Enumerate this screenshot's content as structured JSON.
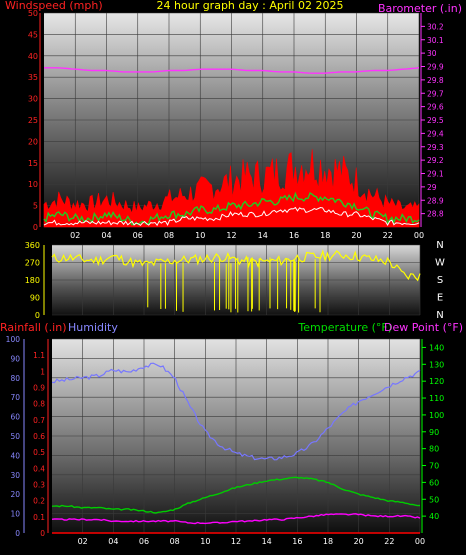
{
  "header": {
    "windspeed_label": "Windspeed (mph)",
    "title": "24 hour graph day : April 02 2025",
    "barometer_label": "Barometer (.in)"
  },
  "colors": {
    "wind_gust": "#ff0000",
    "wind_speed": "#22cc22",
    "wind_avg": "#ffffff",
    "barometer": "#ff33ff",
    "direction": "#ffff00",
    "rain": "#ff0000",
    "humidity": "#7777ff",
    "temperature": "#00cc00",
    "dewpoint": "#ff00ff",
    "left_axis": "#ff2222",
    "right_axis": "#ff33ff",
    "temp_axis": "#00ff00",
    "hum_axis": "#8888ff"
  },
  "chart_data": [
    {
      "type": "line",
      "name": "wind-barometer",
      "x": [
        0,
        1,
        2,
        3,
        4,
        5,
        6,
        7,
        8,
        9,
        10,
        11,
        12,
        13,
        14,
        15,
        16,
        17,
        18,
        19,
        20,
        21,
        22,
        23,
        24
      ],
      "xticks": [
        "02",
        "04",
        "06",
        "08",
        "10",
        "12",
        "14",
        "16",
        "18",
        "20",
        "22",
        "00"
      ],
      "ylim": [
        0,
        50
      ],
      "yticks": [
        0,
        5,
        10,
        15,
        20,
        25,
        30,
        35,
        40,
        45,
        50
      ],
      "y2lim": [
        28.7,
        30.3
      ],
      "y2ticks": [
        "28.8",
        "28.9",
        "29",
        "29.1",
        "29.2",
        "29.3",
        "29.4",
        "29.5",
        "29.6",
        "29.7",
        "29.8",
        "29.9",
        "30",
        "30.1",
        "30.2"
      ],
      "series": [
        {
          "role": "gust",
          "axis": "y",
          "values": [
            5,
            6,
            5,
            5,
            6,
            5,
            4,
            5,
            6,
            7,
            8,
            9,
            10,
            11,
            11,
            12,
            13,
            14,
            13,
            12,
            10,
            7,
            5,
            4,
            4
          ]
        },
        {
          "role": "speed",
          "axis": "y",
          "values": [
            2,
            3,
            2,
            2,
            3,
            2,
            1,
            2,
            3,
            3,
            4,
            4,
            5,
            5,
            6,
            6,
            7,
            7,
            7,
            6,
            5,
            3,
            2,
            2,
            2
          ]
        },
        {
          "role": "average",
          "axis": "y",
          "values": [
            1,
            1,
            1,
            1,
            1,
            1,
            1,
            1,
            1,
            2,
            2,
            2,
            3,
            3,
            3,
            4,
            4,
            4,
            4,
            3,
            3,
            2,
            1,
            1,
            1
          ]
        },
        {
          "role": "barometer",
          "axis": "y2",
          "values": [
            29.89,
            29.89,
            29.88,
            29.87,
            29.87,
            29.86,
            29.86,
            29.86,
            29.87,
            29.87,
            29.88,
            29.88,
            29.88,
            29.87,
            29.87,
            29.86,
            29.86,
            29.85,
            29.85,
            29.86,
            29.86,
            29.87,
            29.87,
            29.88,
            29.89
          ]
        }
      ]
    },
    {
      "type": "line",
      "name": "wind-direction",
      "x": [
        0,
        1,
        2,
        3,
        4,
        5,
        6,
        7,
        8,
        9,
        10,
        11,
        12,
        13,
        14,
        15,
        16,
        17,
        18,
        19,
        20,
        21,
        22,
        23,
        24
      ],
      "xticks": [
        "02",
        "04",
        "06",
        "08",
        "10",
        "12",
        "14",
        "16",
        "18",
        "20",
        "22",
        "00"
      ],
      "ylim": [
        0,
        360
      ],
      "yticks": [
        0,
        90,
        180,
        270,
        360
      ],
      "compass": [
        "N",
        "W",
        "S",
        "E",
        "N"
      ],
      "series": [
        {
          "role": "direction",
          "values": [
            290,
            295,
            285,
            280,
            300,
            275,
            260,
            270,
            280,
            285,
            290,
            300,
            285,
            270,
            275,
            280,
            295,
            300,
            305,
            310,
            300,
            285,
            275,
            200,
            200
          ]
        }
      ]
    },
    {
      "type": "line",
      "name": "temp-humidity-rain",
      "x": [
        0,
        1,
        2,
        3,
        4,
        5,
        6,
        7,
        8,
        9,
        10,
        11,
        12,
        13,
        14,
        15,
        16,
        17,
        18,
        19,
        20,
        21,
        22,
        23,
        24
      ],
      "xticks": [
        "02",
        "04",
        "06",
        "08",
        "10",
        "12",
        "14",
        "16",
        "18",
        "20",
        "22",
        "00"
      ],
      "rainfall_label": "Rainfall (.in)",
      "humidity_label": "Humidity",
      "temperature_label": "Temperature (°F)",
      "dewpoint_label": "Dew Point (°F)",
      "rain_lim": [
        0,
        1.2
      ],
      "rain_ticks": [
        "0",
        "0.1",
        "0.2",
        "0.3",
        "0.4",
        "0.5",
        "0.6",
        "0.7",
        "0.8",
        "0.9",
        "1",
        "1.1"
      ],
      "hum_lim": [
        0,
        100
      ],
      "hum_ticks": [
        0,
        10,
        20,
        30,
        40,
        50,
        60,
        70,
        80,
        90,
        100
      ],
      "temp_lim": [
        30,
        145
      ],
      "temp_ticks": [
        40,
        50,
        60,
        70,
        80,
        90,
        100,
        110,
        120,
        130,
        140
      ],
      "series": [
        {
          "role": "humidity",
          "axis": "hum",
          "values": [
            78,
            79,
            80,
            81,
            84,
            83,
            86,
            87,
            80,
            65,
            52,
            45,
            41,
            39,
            38,
            39,
            41,
            46,
            54,
            62,
            68,
            72,
            76,
            80,
            83
          ]
        },
        {
          "role": "temperature",
          "axis": "temp",
          "values": [
            46,
            46,
            45,
            45,
            44,
            44,
            43,
            42,
            44,
            48,
            51,
            54,
            57,
            59,
            61,
            62,
            63,
            62,
            60,
            56,
            53,
            51,
            49,
            48,
            46
          ]
        },
        {
          "role": "dewpoint",
          "axis": "temp",
          "values": [
            38,
            38,
            38,
            38,
            37,
            37,
            37,
            37,
            37,
            36,
            36,
            36,
            37,
            37,
            38,
            38,
            39,
            40,
            41,
            41,
            41,
            40,
            40,
            40,
            39
          ]
        },
        {
          "role": "rain",
          "axis": "rain",
          "values": [
            0,
            0,
            0,
            0,
            0,
            0,
            0,
            0,
            0,
            0,
            0,
            0,
            0,
            0,
            0,
            0,
            0,
            0,
            0,
            0,
            0,
            0,
            0,
            0,
            0
          ]
        }
      ]
    }
  ]
}
